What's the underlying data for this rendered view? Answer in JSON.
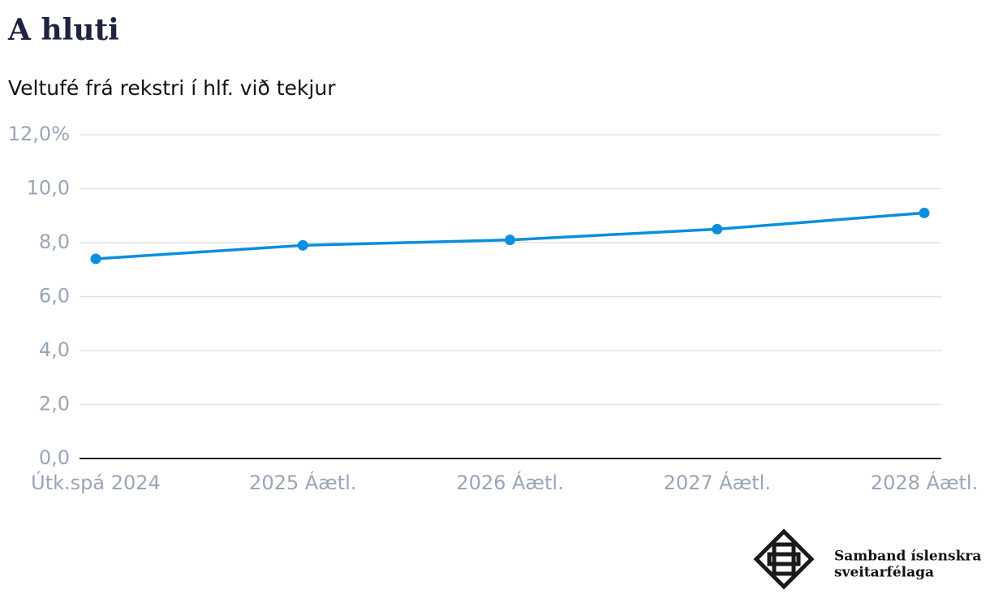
{
  "chart_data": {
    "type": "line",
    "title": "A hluti",
    "subtitle": "Veltufé frá rekstri í hlf. við tekjur",
    "categories": [
      "Útk.spá 2024",
      "2025 Áætl.",
      "2026 Áætl.",
      "2027 Áætl.",
      "2028 Áætl."
    ],
    "values": [
      7.4,
      7.9,
      8.1,
      8.5,
      9.1
    ],
    "color": "#0a8fdc",
    "ylim": [
      0,
      12
    ],
    "yticks": [
      {
        "value": 0,
        "label": "0,0"
      },
      {
        "value": 2,
        "label": "2,0"
      },
      {
        "value": 4,
        "label": "4,0"
      },
      {
        "value": 6,
        "label": "6,0"
      },
      {
        "value": 8,
        "label": "8,0"
      },
      {
        "value": 10,
        "label": "10,0"
      },
      {
        "value": 12,
        "label": "12,0%"
      }
    ],
    "grid": true
  },
  "logo": {
    "line1": "Samband íslenskra",
    "line2": "sveitarfélaga"
  }
}
